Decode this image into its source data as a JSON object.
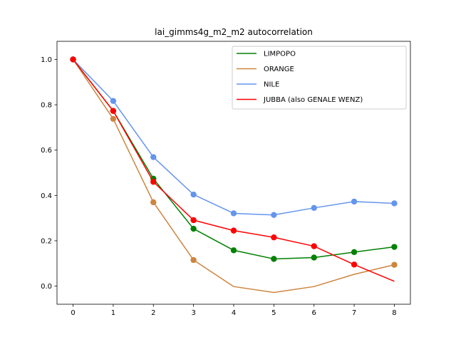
{
  "chart_data": {
    "type": "line",
    "title": "lai_gimms4g_m2_m2 autocorrelation",
    "xlabel": "",
    "ylabel": "",
    "xlim": [
      -0.4,
      8.4
    ],
    "ylim": [
      -0.08,
      1.08
    ],
    "x_ticks": [
      0,
      1,
      2,
      3,
      4,
      5,
      6,
      7,
      8
    ],
    "y_ticks": [
      0.0,
      0.2,
      0.4,
      0.6,
      0.8,
      1.0
    ],
    "y_tick_labels": [
      "0.0",
      "0.2",
      "0.4",
      "0.6",
      "0.8",
      "1.0"
    ],
    "grid": false,
    "legend_position": "top-right",
    "x": [
      0,
      1,
      2,
      3,
      4,
      5,
      6,
      7,
      8
    ],
    "series": [
      {
        "name": "LIMPOPO",
        "color": "#008000",
        "values": [
          1.0,
          0.773,
          0.474,
          0.253,
          0.158,
          0.12,
          0.126,
          0.15,
          0.173
        ],
        "markers": [
          true,
          true,
          true,
          true,
          true,
          true,
          true,
          true,
          true
        ]
      },
      {
        "name": "ORANGE",
        "color": "#cd853f",
        "values": [
          1.0,
          0.738,
          0.37,
          0.115,
          -0.002,
          -0.028,
          -0.002,
          0.052,
          0.094
        ],
        "markers": [
          true,
          true,
          true,
          true,
          false,
          false,
          false,
          false,
          true
        ]
      },
      {
        "name": "NILE",
        "color": "#6495ed",
        "values": [
          1.0,
          0.817,
          0.569,
          0.404,
          0.321,
          0.314,
          0.345,
          0.373,
          0.365
        ],
        "markers": [
          true,
          true,
          true,
          true,
          true,
          true,
          true,
          true,
          true
        ]
      },
      {
        "name": "JUBBA (also GENALE WENZ)",
        "color": "#ff0000",
        "values": [
          1.0,
          0.773,
          0.46,
          0.291,
          0.245,
          0.215,
          0.176,
          0.095,
          0.021
        ],
        "markers": [
          true,
          true,
          true,
          true,
          true,
          true,
          true,
          true,
          false
        ]
      }
    ]
  }
}
